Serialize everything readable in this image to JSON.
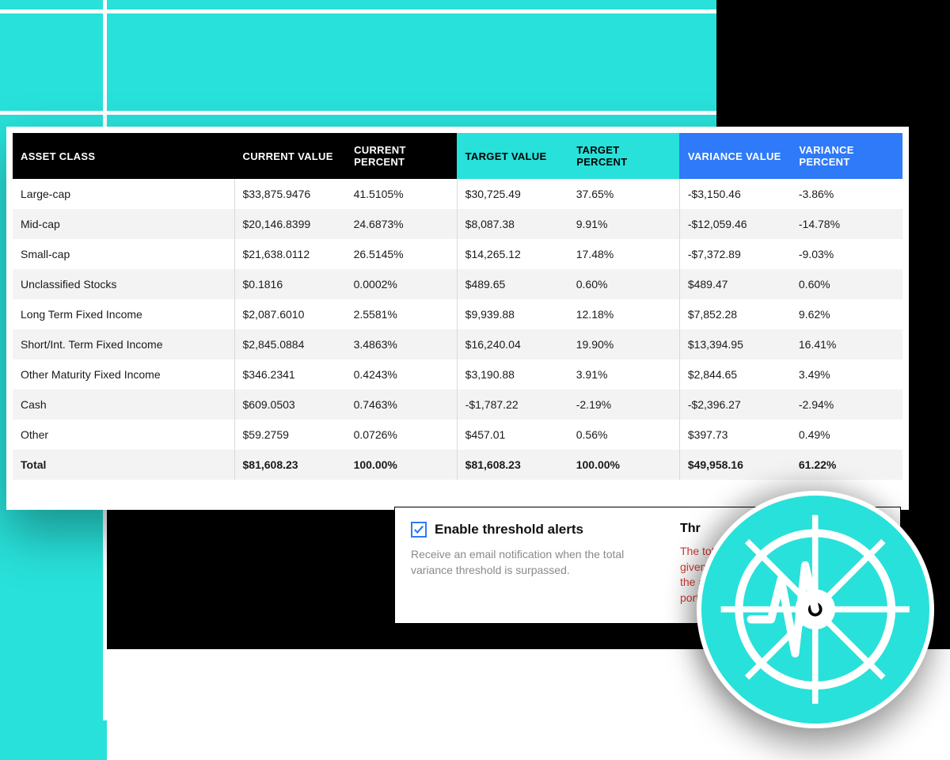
{
  "colors": {
    "teal": "#28e1da",
    "black": "#000000",
    "blue": "#2f7af8",
    "white": "#ffffff",
    "rowAlt": "#f3f3f3",
    "descGray": "#8a8a8a",
    "warnRed": "#d23a2e"
  },
  "table": {
    "headers": {
      "asset": "ASSET CLASS",
      "curVal": "CURRENT VALUE",
      "curPct": "CURRENT PERCENT",
      "tgtVal": "TARGET VALUE",
      "tgtPct": "TARGET PERCENT",
      "varVal": "VARIANCE VALUE",
      "varPct": "VARIANCE PERCENT"
    },
    "rows": [
      {
        "asset": "Large-cap",
        "curVal": "$33,875.9476",
        "curPct": "41.5105%",
        "tgtVal": "$30,725.49",
        "tgtPct": "37.65%",
        "varVal": "-$3,150.46",
        "varPct": "-3.86%"
      },
      {
        "asset": "Mid-cap",
        "curVal": "$20,146.8399",
        "curPct": "24.6873%",
        "tgtVal": "$8,087.38",
        "tgtPct": "9.91%",
        "varVal": "-$12,059.46",
        "varPct": "-14.78%"
      },
      {
        "asset": "Small-cap",
        "curVal": "$21,638.0112",
        "curPct": "26.5145%",
        "tgtVal": "$14,265.12",
        "tgtPct": "17.48%",
        "varVal": "-$7,372.89",
        "varPct": "-9.03%"
      },
      {
        "asset": "Unclassified Stocks",
        "curVal": "$0.1816",
        "curPct": "0.0002%",
        "tgtVal": "$489.65",
        "tgtPct": "0.60%",
        "varVal": "$489.47",
        "varPct": "0.60%"
      },
      {
        "asset": "Long Term Fixed Income",
        "curVal": "$2,087.6010",
        "curPct": "2.5581%",
        "tgtVal": "$9,939.88",
        "tgtPct": "12.18%",
        "varVal": "$7,852.28",
        "varPct": "9.62%"
      },
      {
        "asset": "Short/Int. Term Fixed Income",
        "curVal": "$2,845.0884",
        "curPct": "3.4863%",
        "tgtVal": "$16,240.04",
        "tgtPct": "19.90%",
        "varVal": "$13,394.95",
        "varPct": "16.41%"
      },
      {
        "asset": "Other Maturity Fixed Income",
        "curVal": "$346.2341",
        "curPct": "0.4243%",
        "tgtVal": "$3,190.88",
        "tgtPct": "3.91%",
        "varVal": "$2,844.65",
        "varPct": "3.49%"
      },
      {
        "asset": "Cash",
        "curVal": "$609.0503",
        "curPct": "0.7463%",
        "tgtVal": "-$1,787.22",
        "tgtPct": "-2.19%",
        "varVal": "-$2,396.27",
        "varPct": "-2.94%"
      },
      {
        "asset": "Other",
        "curVal": "$59.2759",
        "curPct": "0.0726%",
        "tgtVal": "$457.01",
        "tgtPct": "0.56%",
        "varVal": "$397.73",
        "varPct": "0.49%"
      }
    ],
    "total": {
      "asset": "Total",
      "curVal": "$81,608.23",
      "curPct": "100.00%",
      "tgtVal": "$81,608.23",
      "tgtPct": "100.00%",
      "varVal": "$49,958.16",
      "varPct": "61.22%"
    }
  },
  "alerts": {
    "checkboxLabel": "Enable threshold alerts",
    "checked": true,
    "description": "Receive an email notification when the total variance threshold is surpassed.",
    "rightHeader": "Thr",
    "rightWarn": "The tot\ngiven t\nthe ac\nportfo"
  }
}
